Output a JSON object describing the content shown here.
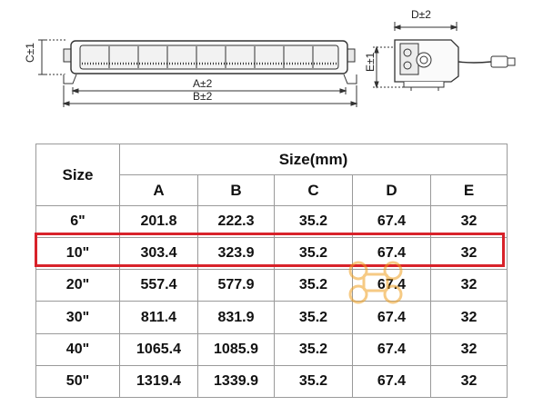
{
  "diagram": {
    "labels": {
      "c": "C±1",
      "a": "A±2",
      "b": "B±2",
      "d": "D±2",
      "e": "E±1"
    }
  },
  "table": {
    "size_header": "Size",
    "size_unit_header": "Size(mm)",
    "columns": [
      "A",
      "B",
      "C",
      "D",
      "E"
    ],
    "rows": [
      {
        "size": "6\"",
        "values": [
          "201.8",
          "222.3",
          "35.2",
          "67.4",
          "32"
        ]
      },
      {
        "size": "10\"",
        "values": [
          "303.4",
          "323.9",
          "35.2",
          "67.4",
          "32"
        ]
      },
      {
        "size": "20\"",
        "values": [
          "557.4",
          "577.9",
          "35.2",
          "67.4",
          "32"
        ]
      },
      {
        "size": "30\"",
        "values": [
          "811.4",
          "831.9",
          "35.2",
          "67.4",
          "32"
        ]
      },
      {
        "size": "40\"",
        "values": [
          "1065.4",
          "1085.9",
          "35.2",
          "67.4",
          "32"
        ]
      },
      {
        "size": "50\"",
        "values": [
          "1319.4",
          "1339.9",
          "35.2",
          "67.4",
          "32"
        ]
      }
    ],
    "highlighted_row": "10\""
  },
  "colors": {
    "highlight": "#d8222a",
    "watermark": "#f0a020"
  }
}
